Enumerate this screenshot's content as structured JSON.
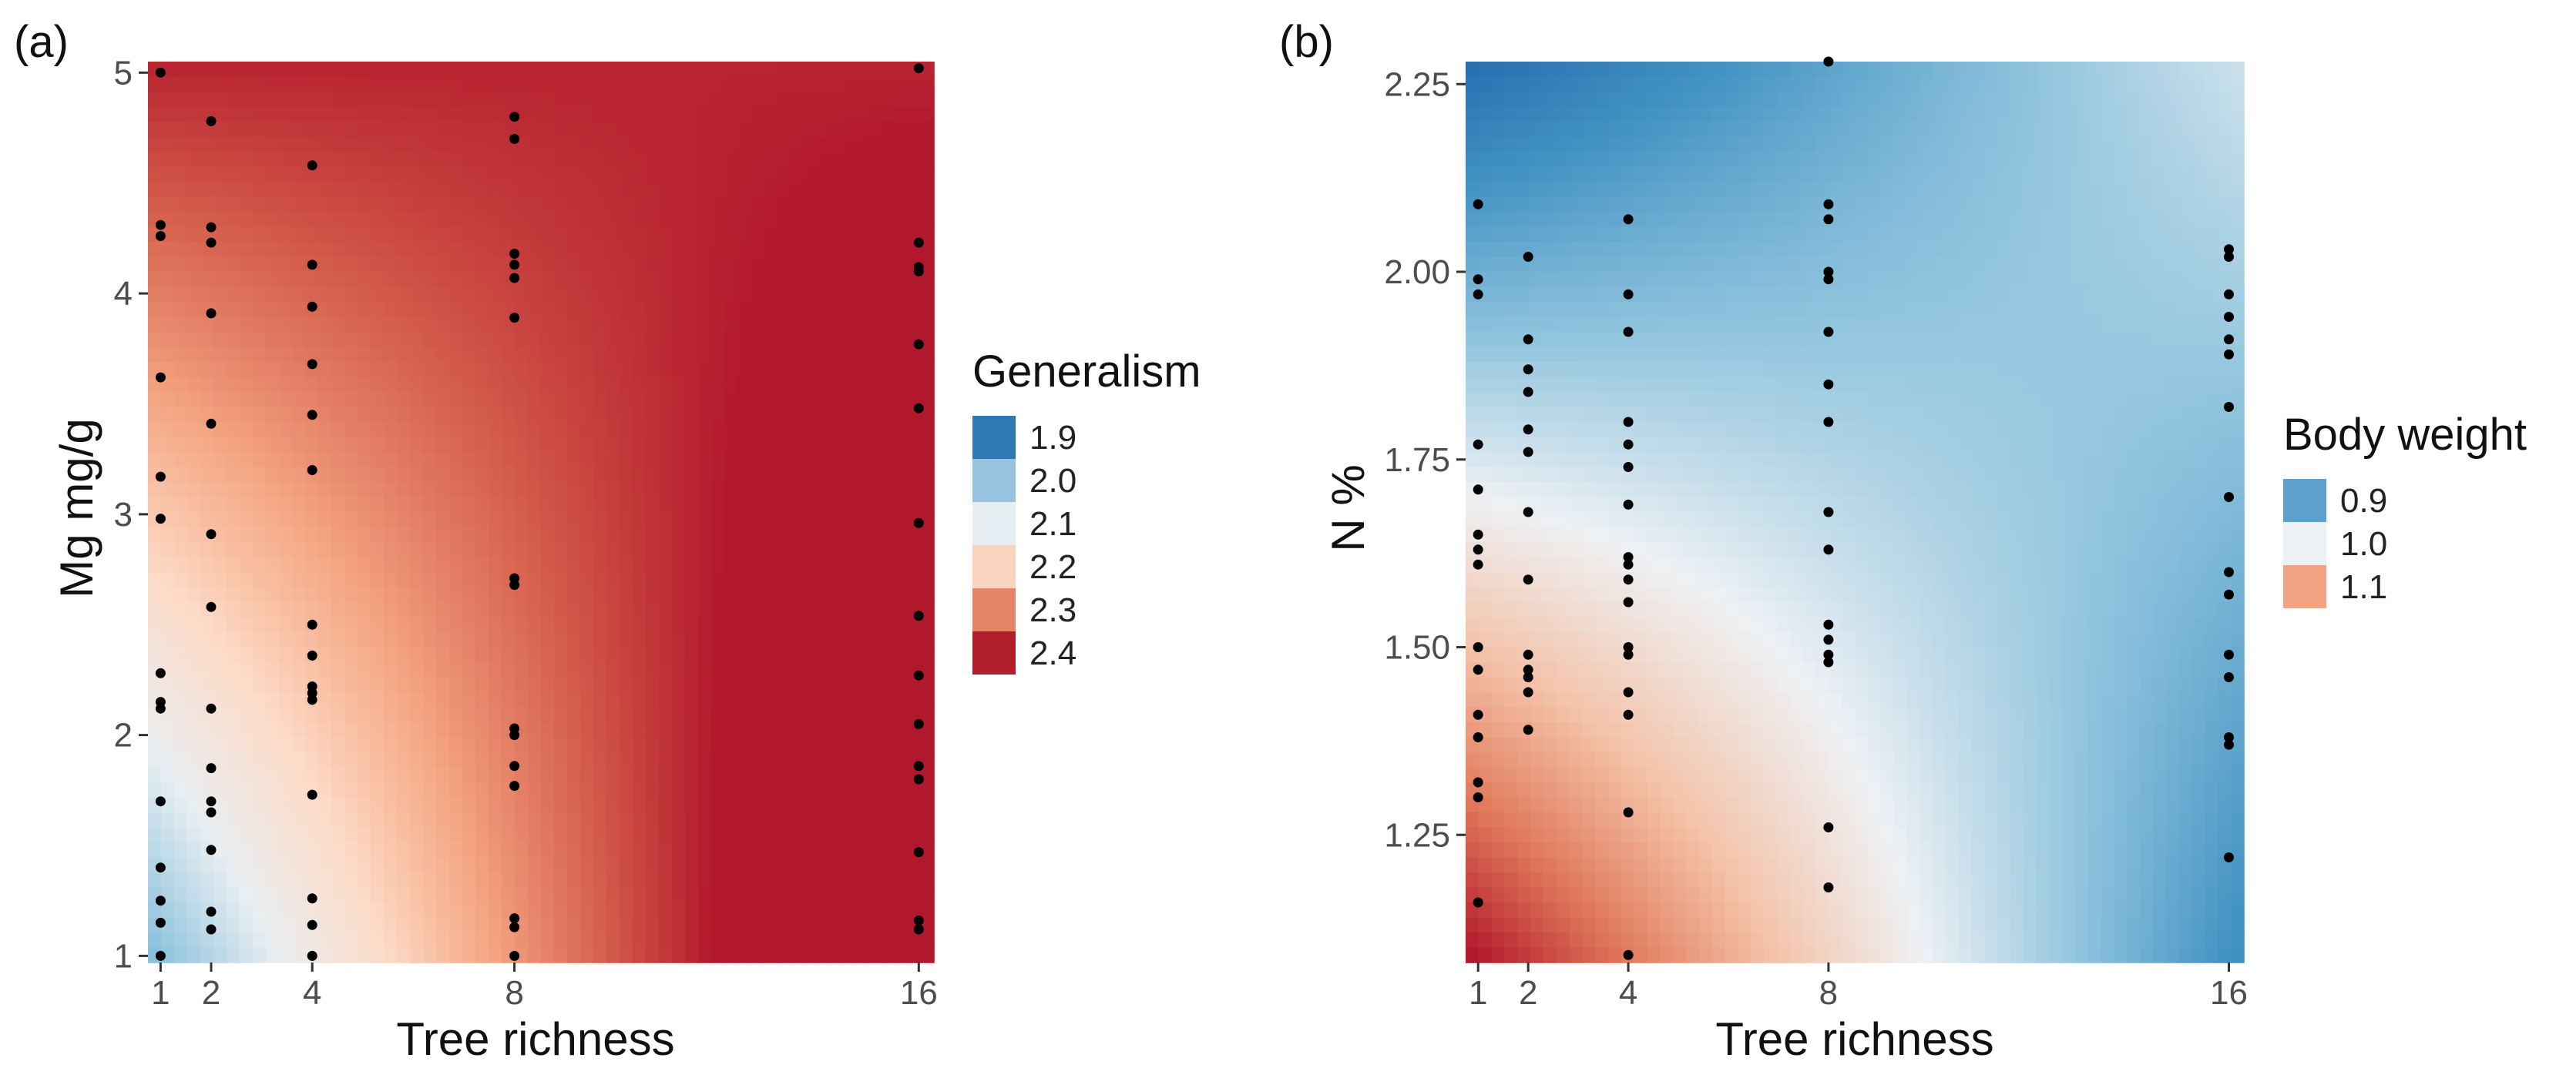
{
  "chart_data": [
    {
      "panel": "(a)",
      "type": "heatmap",
      "xlabel": "Tree richness",
      "ylabel": "Mg mg/g",
      "xlim": [
        0.75,
        16.3
      ],
      "ylim": [
        0.97,
        5.05
      ],
      "x_ticks": [
        1,
        2,
        4,
        8,
        16
      ],
      "y_ticks": [
        1,
        2,
        3,
        4,
        5
      ],
      "y_tick_labels": [
        "1",
        "2",
        "3",
        "4",
        "5"
      ],
      "legend": {
        "title": "Generalism",
        "entries": [
          {
            "label": "1.9",
            "color": "#2f7ab5"
          },
          {
            "label": "2.0",
            "color": "#97c3df"
          },
          {
            "label": "2.1",
            "color": "#e6eef3"
          },
          {
            "label": "2.2",
            "color": "#fbd4c0"
          },
          {
            "label": "2.3",
            "color": "#e58467"
          },
          {
            "label": "2.4",
            "color": "#b11f2c"
          }
        ]
      },
      "surface": {
        "description_model": "value = 2.05 + 0.095*(y-1) + 0.55*s - 0.135*(y-1)*s, s = (x-1)/15",
        "a": 2.05,
        "b": 0.095,
        "c": 0.55,
        "d": -0.135,
        "value_range": [
          1.9,
          2.45
        ]
      },
      "points": [
        {
          "x": 1,
          "ys": [
            5.0,
            4.31,
            4.26,
            3.62,
            3.17,
            2.98,
            2.28,
            2.15,
            2.12,
            1.7,
            1.4,
            1.25,
            1.15,
            1.0
          ]
        },
        {
          "x": 2,
          "ys": [
            4.78,
            4.3,
            4.23,
            3.91,
            3.41,
            2.91,
            2.58,
            2.12,
            1.85,
            1.7,
            1.65,
            1.48,
            1.2,
            1.12
          ]
        },
        {
          "x": 4,
          "ys": [
            4.58,
            4.13,
            3.94,
            3.68,
            3.45,
            3.2,
            2.5,
            2.36,
            2.22,
            2.19,
            2.16,
            1.73,
            1.26,
            1.14,
            1.0
          ]
        },
        {
          "x": 8,
          "ys": [
            4.8,
            4.7,
            4.18,
            4.13,
            4.07,
            3.89,
            2.71,
            2.68,
            2.03,
            2.0,
            1.86,
            1.77,
            1.17,
            1.13,
            1.0
          ]
        },
        {
          "x": 16,
          "ys": [
            5.02,
            4.23,
            4.12,
            4.1,
            3.77,
            3.48,
            2.96,
            2.54,
            2.27,
            2.05,
            1.86,
            1.8,
            1.47,
            1.16,
            1.12
          ]
        }
      ]
    },
    {
      "panel": "(b)",
      "type": "heatmap",
      "xlabel": "Tree richness",
      "ylabel": "N %",
      "xlim": [
        0.75,
        16.3
      ],
      "ylim": [
        1.08,
        2.28
      ],
      "x_ticks": [
        1,
        2,
        4,
        8,
        16
      ],
      "y_ticks": [
        1.25,
        1.5,
        1.75,
        2.0,
        2.25
      ],
      "y_tick_labels": [
        "1.25",
        "1.50",
        "1.75",
        "2.00",
        "2.25"
      ],
      "legend": {
        "title": "Body weight",
        "entries": [
          {
            "label": "0.9",
            "color": "#5ea1cf"
          },
          {
            "label": "1.0",
            "color": "#eef1f4"
          },
          {
            "label": "1.1",
            "color": "#f3a482"
          }
        ]
      },
      "surface": {
        "description_model": "value = 1.16 - 0.25*(y-1.08) - 0.26*s + 0.32*(y-1.08)*s, s = (x-1)/15",
        "a": 1.16,
        "b": -0.25,
        "c": -0.26,
        "d": 0.32,
        "value_range": [
          0.85,
          1.16
        ]
      },
      "points": [
        {
          "x": 1,
          "ys": [
            2.09,
            1.99,
            1.97,
            1.77,
            1.71,
            1.65,
            1.63,
            1.61,
            1.5,
            1.47,
            1.41,
            1.38,
            1.32,
            1.3,
            1.16
          ]
        },
        {
          "x": 2,
          "ys": [
            2.02,
            1.91,
            1.87,
            1.84,
            1.79,
            1.76,
            1.68,
            1.59,
            1.49,
            1.47,
            1.46,
            1.44,
            1.39
          ]
        },
        {
          "x": 4,
          "ys": [
            2.07,
            1.97,
            1.92,
            1.8,
            1.77,
            1.74,
            1.69,
            1.62,
            1.61,
            1.59,
            1.56,
            1.5,
            1.49,
            1.44,
            1.41,
            1.28,
            1.09
          ]
        },
        {
          "x": 8,
          "ys": [
            2.28,
            2.09,
            2.07,
            2.0,
            1.99,
            1.92,
            1.85,
            1.8,
            1.68,
            1.63,
            1.53,
            1.51,
            1.49,
            1.48,
            1.26,
            1.18
          ]
        },
        {
          "x": 16,
          "ys": [
            2.03,
            2.02,
            1.97,
            1.94,
            1.91,
            1.89,
            1.82,
            1.7,
            1.6,
            1.57,
            1.49,
            1.46,
            1.38,
            1.37,
            1.22
          ]
        }
      ]
    }
  ]
}
